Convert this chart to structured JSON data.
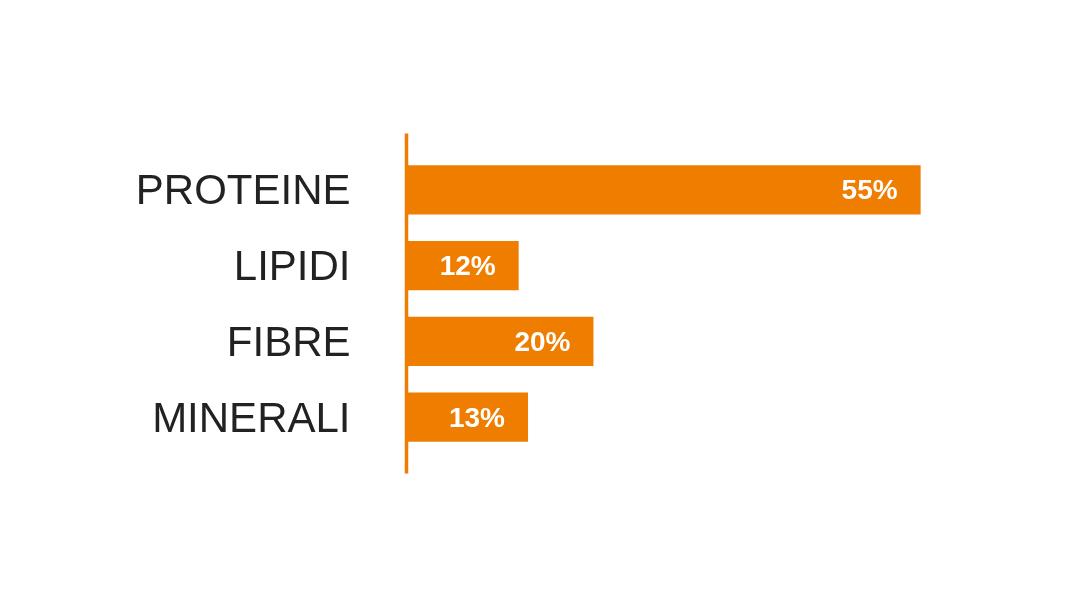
{
  "chart_data": {
    "type": "bar",
    "orientation": "horizontal",
    "categories": [
      "PROTEINE",
      "LIPIDI",
      "FIBRE",
      "MINERALI"
    ],
    "values": [
      55,
      12,
      20,
      13
    ],
    "value_labels": [
      "55%",
      "12%",
      "20%",
      "13%"
    ],
    "color": "#ef7d00",
    "tick_labels": "y"
  }
}
